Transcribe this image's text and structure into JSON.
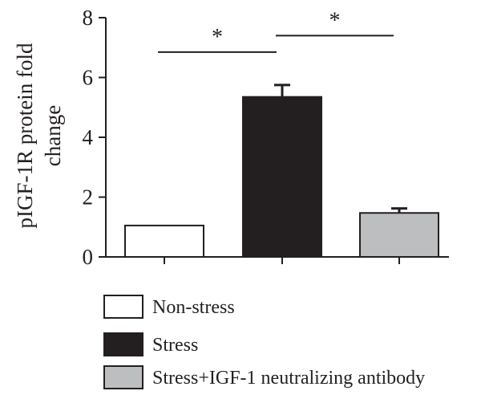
{
  "chart_data": {
    "type": "bar",
    "ylabel": "pIGF-1R protein fold change",
    "ylabel_lines": [
      "pIGF-1R protein fold",
      "change"
    ],
    "ylim": [
      0,
      8
    ],
    "yticks": [
      0,
      2,
      4,
      6,
      8
    ],
    "categories": [
      "Non-stress",
      "Stress",
      "Stress+IGF-1 neutralizing antibody"
    ],
    "values": [
      1.05,
      5.35,
      1.47
    ],
    "errors": [
      0,
      0.4,
      0.15
    ],
    "colors": [
      "#ffffff",
      "#231f20",
      "#bcbec0"
    ],
    "legend_position": "bottom",
    "significance": [
      {
        "from": 0,
        "to": 1,
        "label": "*",
        "y": 6.85
      },
      {
        "from": 1,
        "to": 2,
        "label": "*",
        "y": 7.4
      }
    ]
  }
}
